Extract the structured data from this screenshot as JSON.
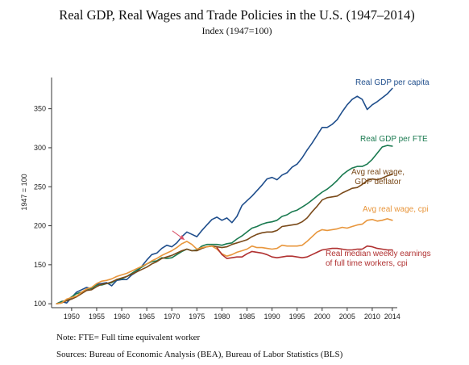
{
  "chart_data": {
    "type": "line",
    "title": "Real GDP, Real Wages and Trade Policies in the U.S. (1947–2014)",
    "subtitle": "Index (1947=100)",
    "xlabel": "",
    "ylabel": "1947 = 100",
    "xlim": [
      1946,
      2015
    ],
    "ylim": [
      95,
      390
    ],
    "x_ticks": [
      "1950",
      "1955",
      "1960",
      "1965",
      "1970",
      "1975",
      "1980",
      "1985",
      "1990",
      "1995",
      "2000",
      "2005",
      "2010",
      "2014"
    ],
    "y_ticks": [
      "100",
      "150",
      "200",
      "250",
      "300",
      "350"
    ],
    "grid": false,
    "legend": "inline labels",
    "series": [
      {
        "name": "Real GDP per capita",
        "label_lines": [
          "Real GDP per capita"
        ],
        "color": "#1f4e8c",
        "x": [
          1947,
          1948,
          1949,
          1950,
          1951,
          1952,
          1953,
          1954,
          1955,
          1956,
          1957,
          1958,
          1959,
          1960,
          1961,
          1962,
          1963,
          1964,
          1965,
          1966,
          1967,
          1968,
          1969,
          1970,
          1971,
          1972,
          1973,
          1974,
          1975,
          1976,
          1977,
          1978,
          1979,
          1980,
          1981,
          1982,
          1983,
          1984,
          1985,
          1986,
          1987,
          1988,
          1989,
          1990,
          1991,
          1992,
          1993,
          1994,
          1995,
          1996,
          1997,
          1998,
          1999,
          2000,
          2001,
          2002,
          2003,
          2004,
          2005,
          2006,
          2007,
          2008,
          2009,
          2010,
          2011,
          2012,
          2013,
          2014
        ],
        "values": [
          100,
          103,
          101,
          108,
          115,
          118,
          121,
          119,
          125,
          126,
          127,
          123,
          130,
          131,
          131,
          137,
          141,
          148,
          156,
          163,
          165,
          171,
          175,
          173,
          178,
          186,
          192,
          189,
          186,
          194,
          201,
          208,
          211,
          207,
          210,
          204,
          212,
          226,
          232,
          238,
          245,
          252,
          260,
          262,
          259,
          265,
          268,
          275,
          279,
          287,
          297,
          306,
          316,
          326,
          326,
          330,
          336,
          346,
          355,
          362,
          366,
          362,
          349,
          355,
          359,
          364,
          369,
          376
        ]
      },
      {
        "name": "Real GDP per FTE",
        "label_lines": [
          "Real GDP per FTE"
        ],
        "color": "#1a7a50",
        "x": [
          1947,
          1948,
          1949,
          1950,
          1951,
          1952,
          1953,
          1954,
          1955,
          1956,
          1957,
          1958,
          1959,
          1960,
          1961,
          1962,
          1963,
          1964,
          1965,
          1966,
          1967,
          1968,
          1969,
          1970,
          1971,
          1972,
          1973,
          1974,
          1975,
          1976,
          1977,
          1978,
          1979,
          1980,
          1981,
          1982,
          1983,
          1984,
          1985,
          1986,
          1987,
          1988,
          1989,
          1990,
          1991,
          1992,
          1993,
          1994,
          1995,
          1996,
          1997,
          1998,
          1999,
          2000,
          2001,
          2002,
          2003,
          2004,
          2005,
          2006,
          2007,
          2008,
          2009,
          2010,
          2011,
          2012,
          2013,
          2014
        ],
        "values": [
          100,
          103,
          104,
          109,
          113,
          115,
          118,
          120,
          124,
          124,
          126,
          127,
          131,
          132,
          135,
          139,
          143,
          147,
          151,
          154,
          155,
          159,
          158,
          159,
          163,
          167,
          170,
          168,
          169,
          174,
          176,
          176,
          176,
          175,
          177,
          178,
          183,
          187,
          192,
          197,
          199,
          202,
          204,
          205,
          207,
          212,
          214,
          218,
          220,
          224,
          228,
          233,
          238,
          243,
          247,
          252,
          258,
          265,
          270,
          274,
          276,
          276,
          279,
          285,
          293,
          301,
          303,
          302
        ]
      },
      {
        "name": "Avg real wage, GDP deflator",
        "label_lines": [
          "Avg real wage,",
          "GDP deflator"
        ],
        "color": "#7a4a1a",
        "x": [
          1947,
          1948,
          1949,
          1950,
          1951,
          1952,
          1953,
          1954,
          1955,
          1956,
          1957,
          1958,
          1959,
          1960,
          1961,
          1962,
          1963,
          1964,
          1965,
          1966,
          1967,
          1968,
          1969,
          1970,
          1971,
          1972,
          1973,
          1974,
          1975,
          1976,
          1977,
          1978,
          1979,
          1980,
          1981,
          1982,
          1983,
          1984,
          1985,
          1986,
          1987,
          1988,
          1989,
          1990,
          1991,
          1992,
          1993,
          1994,
          1995,
          1996,
          1997,
          1998,
          1999,
          2000,
          2001,
          2002,
          2003,
          2004,
          2005,
          2006,
          2007,
          2008,
          2009,
          2010,
          2011,
          2012,
          2013,
          2014
        ],
        "values": [
          100,
          101,
          104,
          106,
          109,
          113,
          117,
          118,
          122,
          125,
          126,
          128,
          131,
          133,
          135,
          138,
          141,
          144,
          147,
          151,
          154,
          158,
          160,
          162,
          165,
          168,
          170,
          168,
          168,
          171,
          173,
          174,
          173,
          172,
          173,
          176,
          178,
          180,
          182,
          186,
          189,
          191,
          192,
          192,
          194,
          199,
          200,
          201,
          202,
          205,
          210,
          218,
          225,
          233,
          236,
          237,
          238,
          242,
          245,
          248,
          249,
          253,
          258,
          260,
          259,
          261,
          264,
          266
        ]
      },
      {
        "name": "Avg real wage, cpi",
        "label_lines": [
          "Avg real wage, cpi"
        ],
        "color": "#e8963c",
        "x": [
          1947,
          1948,
          1949,
          1950,
          1951,
          1952,
          1953,
          1954,
          1955,
          1956,
          1957,
          1958,
          1959,
          1960,
          1961,
          1962,
          1963,
          1964,
          1965,
          1966,
          1967,
          1968,
          1969,
          1970,
          1971,
          1972,
          1973,
          1974,
          1975,
          1976,
          1977,
          1978,
          1979,
          1980,
          1981,
          1982,
          1983,
          1984,
          1985,
          1986,
          1987,
          1988,
          1989,
          1990,
          1991,
          1992,
          1993,
          1994,
          1995,
          1996,
          1997,
          1998,
          1999,
          2000,
          2001,
          2002,
          2003,
          2004,
          2005,
          2006,
          2007,
          2008,
          2009,
          2010,
          2011,
          2012,
          2013,
          2014
        ],
        "values": [
          100,
          101,
          106,
          108,
          110,
          115,
          119,
          121,
          126,
          129,
          130,
          132,
          135,
          137,
          139,
          142,
          145,
          148,
          151,
          155,
          158,
          162,
          165,
          168,
          172,
          177,
          180,
          176,
          170,
          172,
          173,
          174,
          170,
          164,
          161,
          163,
          166,
          168,
          170,
          174,
          172,
          172,
          171,
          170,
          171,
          175,
          174,
          174,
          174,
          175,
          180,
          186,
          192,
          195,
          194,
          195,
          196,
          198,
          197,
          199,
          201,
          202,
          207,
          208,
          206,
          207,
          209,
          207
        ]
      },
      {
        "name": "Real median weekly earnings of full time workers, cpi",
        "label_lines": [
          "Real median weekly earnings",
          "of full time workers, cpi"
        ],
        "color": "#b03030",
        "x": [
          1979,
          1980,
          1981,
          1982,
          1983,
          1984,
          1985,
          1986,
          1987,
          1988,
          1989,
          1990,
          1991,
          1992,
          1993,
          1994,
          1995,
          1996,
          1997,
          1998,
          1999,
          2000,
          2001,
          2002,
          2003,
          2004,
          2005,
          2006,
          2007,
          2008,
          2009,
          2010,
          2011,
          2012,
          2013,
          2014
        ],
        "values": [
          172,
          163,
          158,
          159,
          160,
          160,
          164,
          167,
          166,
          165,
          163,
          160,
          159,
          160,
          161,
          161,
          160,
          159,
          160,
          163,
          166,
          169,
          170,
          171,
          171,
          170,
          169,
          169,
          170,
          170,
          174,
          173,
          171,
          170,
          169,
          169
        ]
      }
    ],
    "annotation": {
      "type": "arrow",
      "color": "#d9536a",
      "x": 1973,
      "y": 178
    }
  },
  "notes": {
    "note": "Note: FTE= Full time equivalent worker",
    "sources": "Sources:  Bureau of Economic Analysis (BEA), Bureau of Labor Statistics (BLS)"
  }
}
